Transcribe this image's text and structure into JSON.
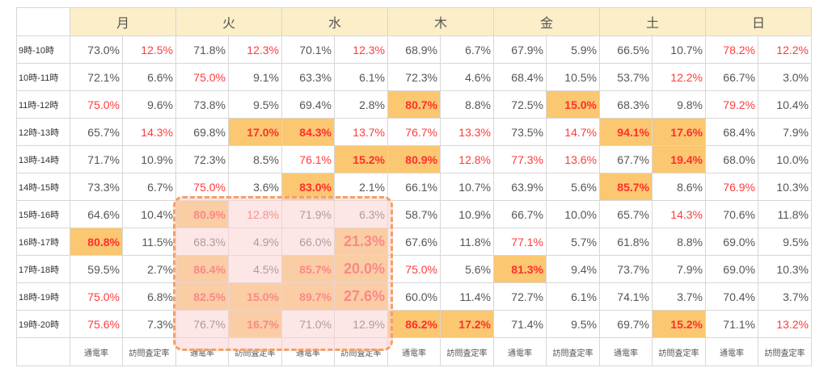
{
  "table": {
    "days": [
      "月",
      "火",
      "水",
      "木",
      "金",
      "土",
      "日"
    ],
    "subheaders": [
      "通電率",
      "訪問査定率"
    ],
    "colors": {
      "header_bg": "#fbeec8",
      "highlight_bg": "#fbc770",
      "red_text": "#ff3b3b",
      "normal_text": "#555555",
      "callout_border": "#f4a064",
      "callout_fill": "#fad2d2"
    },
    "callout": {
      "label": "dashed-highlight-region",
      "rows": "15時-16時 to 19時-20時",
      "days": "火, 水"
    },
    "rows": [
      {
        "time": "9時-10時",
        "cells": [
          {
            "v": "73.0%"
          },
          {
            "v": "12.5%",
            "s": "red"
          },
          {
            "v": "71.8%"
          },
          {
            "v": "12.3%",
            "s": "red"
          },
          {
            "v": "70.1%"
          },
          {
            "v": "12.3%",
            "s": "red"
          },
          {
            "v": "68.9%"
          },
          {
            "v": "6.7%"
          },
          {
            "v": "67.9%"
          },
          {
            "v": "5.9%"
          },
          {
            "v": "66.5%"
          },
          {
            "v": "10.7%"
          },
          {
            "v": "78.2%",
            "s": "red"
          },
          {
            "v": "12.2%",
            "s": "red"
          }
        ]
      },
      {
        "time": "10時-11時",
        "cells": [
          {
            "v": "72.1%"
          },
          {
            "v": "6.6%"
          },
          {
            "v": "75.0%",
            "s": "red"
          },
          {
            "v": "9.1%"
          },
          {
            "v": "63.3%"
          },
          {
            "v": "6.1%"
          },
          {
            "v": "72.3%"
          },
          {
            "v": "4.6%"
          },
          {
            "v": "68.4%"
          },
          {
            "v": "10.5%"
          },
          {
            "v": "53.7%"
          },
          {
            "v": "12.2%",
            "s": "red"
          },
          {
            "v": "66.7%"
          },
          {
            "v": "3.0%"
          }
        ]
      },
      {
        "time": "11時-12時",
        "cells": [
          {
            "v": "75.0%",
            "s": "red"
          },
          {
            "v": "9.6%"
          },
          {
            "v": "73.8%"
          },
          {
            "v": "9.5%"
          },
          {
            "v": "69.4%"
          },
          {
            "v": "2.8%"
          },
          {
            "v": "80.7%",
            "s": "hl"
          },
          {
            "v": "8.8%"
          },
          {
            "v": "72.5%"
          },
          {
            "v": "15.0%",
            "s": "hl"
          },
          {
            "v": "68.3%"
          },
          {
            "v": "9.8%"
          },
          {
            "v": "79.2%",
            "s": "red"
          },
          {
            "v": "10.4%"
          }
        ]
      },
      {
        "time": "12時-13時",
        "cells": [
          {
            "v": "65.7%"
          },
          {
            "v": "14.3%",
            "s": "red"
          },
          {
            "v": "69.8%"
          },
          {
            "v": "17.0%",
            "s": "hl"
          },
          {
            "v": "84.3%",
            "s": "hl"
          },
          {
            "v": "13.7%",
            "s": "red"
          },
          {
            "v": "76.7%",
            "s": "red"
          },
          {
            "v": "13.3%",
            "s": "red"
          },
          {
            "v": "73.5%"
          },
          {
            "v": "14.7%",
            "s": "red"
          },
          {
            "v": "94.1%",
            "s": "hl"
          },
          {
            "v": "17.6%",
            "s": "hl"
          },
          {
            "v": "68.4%"
          },
          {
            "v": "7.9%"
          }
        ]
      },
      {
        "time": "13時-14時",
        "cells": [
          {
            "v": "71.7%"
          },
          {
            "v": "10.9%"
          },
          {
            "v": "72.3%"
          },
          {
            "v": "8.5%"
          },
          {
            "v": "76.1%",
            "s": "red"
          },
          {
            "v": "15.2%",
            "s": "hl"
          },
          {
            "v": "80.9%",
            "s": "hl"
          },
          {
            "v": "12.8%",
            "s": "red"
          },
          {
            "v": "77.3%",
            "s": "red"
          },
          {
            "v": "13.6%",
            "s": "red"
          },
          {
            "v": "67.7%"
          },
          {
            "v": "19.4%",
            "s": "hl"
          },
          {
            "v": "68.0%"
          },
          {
            "v": "10.0%"
          }
        ]
      },
      {
        "time": "14時-15時",
        "cells": [
          {
            "v": "73.3%"
          },
          {
            "v": "6.7%"
          },
          {
            "v": "75.0%",
            "s": "red"
          },
          {
            "v": "3.6%"
          },
          {
            "v": "83.0%",
            "s": "hl"
          },
          {
            "v": "2.1%"
          },
          {
            "v": "66.1%"
          },
          {
            "v": "10.7%"
          },
          {
            "v": "63.9%"
          },
          {
            "v": "5.6%"
          },
          {
            "v": "85.7%",
            "s": "hl"
          },
          {
            "v": "8.6%"
          },
          {
            "v": "76.9%",
            "s": "red"
          },
          {
            "v": "10.3%"
          }
        ]
      },
      {
        "time": "15時-16時",
        "cells": [
          {
            "v": "64.6%"
          },
          {
            "v": "10.4%"
          },
          {
            "v": "80.9%",
            "s": "hl"
          },
          {
            "v": "12.8%",
            "s": "red"
          },
          {
            "v": "71.9%"
          },
          {
            "v": "6.3%"
          },
          {
            "v": "58.7%"
          },
          {
            "v": "10.9%"
          },
          {
            "v": "66.7%"
          },
          {
            "v": "10.0%"
          },
          {
            "v": "65.7%"
          },
          {
            "v": "14.3%",
            "s": "red"
          },
          {
            "v": "70.6%"
          },
          {
            "v": "11.8%"
          }
        ]
      },
      {
        "time": "16時-17時",
        "cells": [
          {
            "v": "80.8%",
            "s": "hl"
          },
          {
            "v": "11.5%"
          },
          {
            "v": "68.3%"
          },
          {
            "v": "4.9%"
          },
          {
            "v": "66.0%"
          },
          {
            "v": "21.3%",
            "s": "hl big"
          },
          {
            "v": "67.6%"
          },
          {
            "v": "11.8%"
          },
          {
            "v": "77.1%",
            "s": "red"
          },
          {
            "v": "5.7%"
          },
          {
            "v": "61.8%"
          },
          {
            "v": "8.8%"
          },
          {
            "v": "69.0%"
          },
          {
            "v": "9.5%"
          }
        ]
      },
      {
        "time": "17時-18時",
        "cells": [
          {
            "v": "59.5%"
          },
          {
            "v": "2.7%"
          },
          {
            "v": "86.4%",
            "s": "hl"
          },
          {
            "v": "4.5%"
          },
          {
            "v": "85.7%",
            "s": "hl"
          },
          {
            "v": "20.0%",
            "s": "hl big"
          },
          {
            "v": "75.0%",
            "s": "red"
          },
          {
            "v": "5.6%"
          },
          {
            "v": "81.3%",
            "s": "hl"
          },
          {
            "v": "9.4%"
          },
          {
            "v": "73.7%"
          },
          {
            "v": "7.9%"
          },
          {
            "v": "69.0%"
          },
          {
            "v": "10.3%"
          }
        ]
      },
      {
        "time": "18時-19時",
        "cells": [
          {
            "v": "75.0%",
            "s": "red"
          },
          {
            "v": "6.8%"
          },
          {
            "v": "82.5%",
            "s": "hl"
          },
          {
            "v": "15.0%",
            "s": "hl"
          },
          {
            "v": "89.7%",
            "s": "hl"
          },
          {
            "v": "27.6%",
            "s": "hl big"
          },
          {
            "v": "60.0%"
          },
          {
            "v": "11.4%"
          },
          {
            "v": "72.7%"
          },
          {
            "v": "6.1%"
          },
          {
            "v": "74.1%"
          },
          {
            "v": "3.7%"
          },
          {
            "v": "70.4%"
          },
          {
            "v": "3.7%"
          }
        ]
      },
      {
        "time": "19時-20時",
        "cells": [
          {
            "v": "75.6%",
            "s": "red"
          },
          {
            "v": "7.3%"
          },
          {
            "v": "76.7%"
          },
          {
            "v": "16.7%",
            "s": "hl"
          },
          {
            "v": "71.0%"
          },
          {
            "v": "12.9%"
          },
          {
            "v": "86.2%",
            "s": "hl"
          },
          {
            "v": "17.2%",
            "s": "hl"
          },
          {
            "v": "71.4%"
          },
          {
            "v": "9.5%"
          },
          {
            "v": "69.7%"
          },
          {
            "v": "15.2%",
            "s": "hl"
          },
          {
            "v": "71.1%"
          },
          {
            "v": "13.2%",
            "s": "red"
          }
        ]
      }
    ]
  }
}
